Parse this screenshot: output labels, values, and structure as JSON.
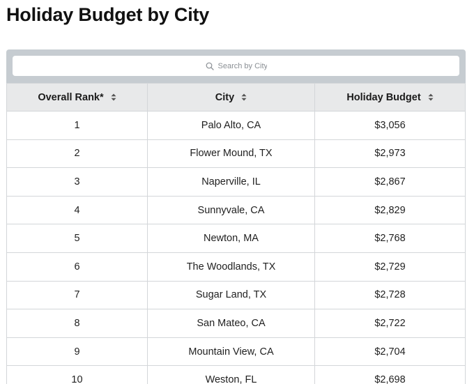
{
  "title": "Holiday Budget by City",
  "search": {
    "placeholder": "Search by City",
    "icon": "search-icon"
  },
  "columns": [
    {
      "label": "Overall Rank*",
      "sort_icon": "sort-icon"
    },
    {
      "label": "City",
      "sort_icon": "sort-icon"
    },
    {
      "label": "Holiday Budget",
      "sort_icon": "sort-icon"
    }
  ],
  "rows": [
    {
      "rank": "1",
      "city": "Palo Alto, CA",
      "budget": "$3,056"
    },
    {
      "rank": "2",
      "city": "Flower Mound, TX",
      "budget": "$2,973"
    },
    {
      "rank": "3",
      "city": "Naperville, IL",
      "budget": "$2,867"
    },
    {
      "rank": "4",
      "city": "Sunnyvale, CA",
      "budget": "$2,829"
    },
    {
      "rank": "5",
      "city": "Newton, MA",
      "budget": "$2,768"
    },
    {
      "rank": "6",
      "city": "The Woodlands, TX",
      "budget": "$2,729"
    },
    {
      "rank": "7",
      "city": "Sugar Land, TX",
      "budget": "$2,728"
    },
    {
      "rank": "8",
      "city": "San Mateo, CA",
      "budget": "$2,722"
    },
    {
      "rank": "9",
      "city": "Mountain View, CA",
      "budget": "$2,704"
    },
    {
      "rank": "10",
      "city": "Weston, FL",
      "budget": "$2,698"
    }
  ]
}
